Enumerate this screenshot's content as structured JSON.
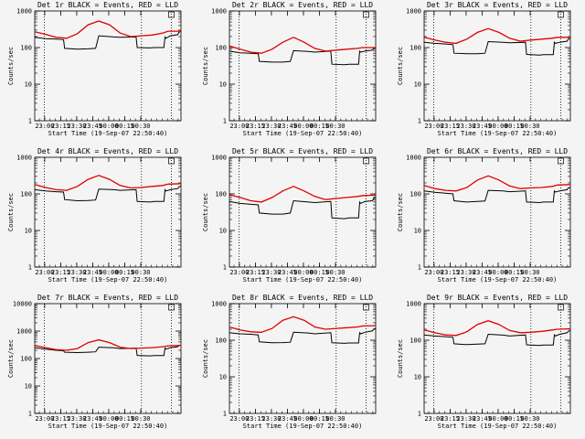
{
  "chart_data": [
    {
      "type": "line",
      "title": "Det 1r BLACK = Events, RED = LLD",
      "xlabel": "Start Time (19-Sep-07 22:50:40)",
      "ylabel": "Counts/sec",
      "ylim": [
        1,
        1000
      ],
      "yscale": "log",
      "x_tick_labels": [
        "23:00",
        "23:15",
        "23:30",
        "23:45",
        "00:00",
        "00:15",
        "00:30"
      ],
      "y_tick_labels": [
        "1",
        "10",
        "100",
        "1000"
      ],
      "series": [
        {
          "color": "#000000",
          "x": [
            0,
            10,
            20,
            27,
            28,
            40,
            50,
            57,
            60,
            74,
            80,
            95,
            96,
            108,
            112,
            121,
            122,
            123,
            127,
            134,
            135,
            137
          ],
          "y": [
            190,
            175,
            170,
            165,
            95,
            90,
            92,
            95,
            210,
            195,
            190,
            195,
            100,
            98,
            100,
            100,
            195,
            180,
            210,
            225,
            260,
            280
          ]
        },
        {
          "color": "#e00000",
          "x": [
            0,
            10,
            20,
            30,
            40,
            50,
            60,
            70,
            80,
            90,
            100,
            110,
            120,
            125,
            137
          ],
          "y": [
            270,
            230,
            190,
            180,
            240,
            420,
            530,
            420,
            250,
            200,
            210,
            220,
            250,
            280,
            280
          ]
        }
      ]
    },
    {
      "type": "line",
      "title": "Det 2r BLACK = Events, RED = LLD",
      "xlabel": "Start Time (19-Sep-07 22:50:40)",
      "ylabel": "Counts/sec",
      "ylim": [
        1,
        1000
      ],
      "yscale": "log",
      "x_tick_labels": [
        "23:00",
        "23:15",
        "23:30",
        "23:45",
        "00:00",
        "00:15",
        "00:30"
      ],
      "y_tick_labels": [
        "1",
        "10",
        "100",
        "1000"
      ],
      "series": [
        {
          "color": "#000000",
          "x": [
            0,
            10,
            20,
            27,
            28,
            40,
            50,
            57,
            60,
            74,
            80,
            95,
            96,
            108,
            112,
            121,
            122,
            123,
            127,
            134,
            135,
            137
          ],
          "y": [
            80,
            72,
            70,
            68,
            42,
            40,
            40,
            42,
            82,
            78,
            75,
            80,
            35,
            34,
            35,
            35,
            80,
            75,
            80,
            85,
            95,
            100
          ]
        },
        {
          "color": "#e00000",
          "x": [
            0,
            10,
            20,
            30,
            40,
            50,
            60,
            70,
            80,
            90,
            100,
            110,
            120,
            125,
            137
          ],
          "y": [
            110,
            90,
            75,
            70,
            90,
            140,
            190,
            140,
            95,
            80,
            85,
            90,
            95,
            100,
            100
          ]
        }
      ]
    },
    {
      "type": "line",
      "title": "Det 3r BLACK = Events, RED = LLD",
      "xlabel": "Start Time (19-Sep-07 22:50:40)",
      "ylabel": "Counts/sec",
      "ylim": [
        1,
        1000
      ],
      "yscale": "log",
      "x_tick_labels": [
        "23:00",
        "23:15",
        "23:30",
        "23:45",
        "00:00",
        "00:15",
        "00:30"
      ],
      "y_tick_labels": [
        "1",
        "10",
        "100",
        "1000"
      ],
      "series": [
        {
          "color": "#000000",
          "x": [
            0,
            10,
            20,
            27,
            28,
            40,
            50,
            57,
            60,
            74,
            80,
            95,
            96,
            108,
            112,
            121,
            122,
            123,
            127,
            134,
            135,
            137
          ],
          "y": [
            140,
            130,
            125,
            120,
            70,
            68,
            68,
            70,
            145,
            140,
            135,
            140,
            65,
            62,
            64,
            64,
            140,
            130,
            140,
            150,
            170,
            180
          ]
        },
        {
          "color": "#e00000",
          "x": [
            0,
            10,
            20,
            30,
            40,
            50,
            60,
            70,
            80,
            90,
            100,
            110,
            120,
            125,
            137
          ],
          "y": [
            190,
            160,
            140,
            130,
            170,
            260,
            330,
            260,
            180,
            150,
            160,
            170,
            180,
            190,
            190
          ]
        }
      ]
    },
    {
      "type": "line",
      "title": "Det 4r BLACK = Events, RED = LLD",
      "xlabel": "Start Time (19-Sep-07 22:50:40)",
      "ylabel": "Counts/sec",
      "ylim": [
        1,
        1000
      ],
      "yscale": "log",
      "x_tick_labels": [
        "23:00",
        "23:15",
        "23:30",
        "23:45",
        "00:00",
        "00:15",
        "00:30"
      ],
      "y_tick_labels": [
        "1",
        "10",
        "100",
        "1000"
      ],
      "series": [
        {
          "color": "#000000",
          "x": [
            0,
            10,
            20,
            27,
            28,
            40,
            50,
            57,
            60,
            74,
            80,
            95,
            96,
            108,
            112,
            121,
            122,
            123,
            127,
            134,
            135,
            137
          ],
          "y": [
            130,
            120,
            115,
            112,
            70,
            65,
            66,
            68,
            135,
            130,
            125,
            130,
            62,
            60,
            62,
            62,
            130,
            120,
            130,
            140,
            155,
            165
          ]
        },
        {
          "color": "#e00000",
          "x": [
            0,
            10,
            20,
            30,
            40,
            50,
            60,
            70,
            80,
            90,
            100,
            110,
            120,
            125,
            137
          ],
          "y": [
            180,
            150,
            130,
            125,
            160,
            250,
            320,
            250,
            170,
            145,
            150,
            160,
            170,
            185,
            190
          ]
        }
      ]
    },
    {
      "type": "line",
      "title": "Det 5r BLACK = Events, RED = LLD",
      "xlabel": "Start Time (19-Sep-07 22:50:40)",
      "ylabel": "Counts/sec",
      "ylim": [
        1,
        1000
      ],
      "yscale": "log",
      "x_tick_labels": [
        "23:00",
        "23:15",
        "23:30",
        "23:45",
        "00:00",
        "00:15",
        "00:30"
      ],
      "y_tick_labels": [
        "1",
        "10",
        "100",
        "1000"
      ],
      "series": [
        {
          "color": "#000000",
          "x": [
            0,
            10,
            20,
            27,
            28,
            40,
            50,
            57,
            60,
            74,
            80,
            95,
            96,
            108,
            112,
            121,
            122,
            123,
            127,
            134,
            135,
            137
          ],
          "y": [
            62,
            55,
            52,
            50,
            30,
            28,
            28,
            30,
            65,
            60,
            58,
            62,
            22,
            21,
            22,
            22,
            60,
            55,
            62,
            65,
            75,
            80
          ]
        },
        {
          "color": "#e00000",
          "x": [
            0,
            10,
            20,
            30,
            40,
            50,
            60,
            70,
            80,
            90,
            100,
            110,
            120,
            125,
            137
          ],
          "y": [
            95,
            80,
            65,
            60,
            80,
            120,
            160,
            120,
            85,
            70,
            75,
            80,
            85,
            90,
            92
          ]
        }
      ]
    },
    {
      "type": "line",
      "title": "Det 6r BLACK = Events, RED = LLD",
      "xlabel": "Start Time (19-Sep-07 22:50:40)",
      "ylabel": "Counts/sec",
      "ylim": [
        1,
        1000
      ],
      "yscale": "log",
      "x_tick_labels": [
        "23:00",
        "23:15",
        "23:30",
        "23:45",
        "00:00",
        "00:15",
        "00:30"
      ],
      "y_tick_labels": [
        "1",
        "10",
        "100",
        "1000"
      ],
      "series": [
        {
          "color": "#000000",
          "x": [
            0,
            10,
            20,
            27,
            28,
            40,
            50,
            57,
            60,
            74,
            80,
            95,
            96,
            108,
            112,
            121,
            122,
            123,
            127,
            134,
            135,
            137
          ],
          "y": [
            120,
            110,
            105,
            100,
            65,
            60,
            62,
            64,
            125,
            120,
            115,
            120,
            60,
            58,
            60,
            60,
            120,
            112,
            120,
            130,
            145,
            150
          ]
        },
        {
          "color": "#e00000",
          "x": [
            0,
            10,
            20,
            30,
            40,
            50,
            60,
            70,
            80,
            90,
            100,
            110,
            120,
            125,
            137
          ],
          "y": [
            170,
            140,
            125,
            120,
            150,
            240,
            310,
            240,
            165,
            140,
            145,
            150,
            160,
            175,
            180
          ]
        }
      ]
    },
    {
      "type": "line",
      "title": "Det 7r BLACK = Events, RED = LLD",
      "xlabel": "Start Time (19-Sep-07 22:50:40)",
      "ylabel": "Counts/sec",
      "ylim": [
        1,
        10000
      ],
      "yscale": "log",
      "x_tick_labels": [
        "23:00",
        "23:15",
        "23:30",
        "23:45",
        "00:00",
        "00:15",
        "00:30"
      ],
      "y_tick_labels": [
        "1",
        "10",
        "100",
        "1000",
        "10000"
      ],
      "series": [
        {
          "color": "#000000",
          "x": [
            0,
            10,
            20,
            27,
            28,
            40,
            50,
            57,
            60,
            74,
            80,
            95,
            96,
            108,
            112,
            121,
            122,
            123,
            127,
            134,
            135,
            137
          ],
          "y": [
            250,
            220,
            200,
            190,
            170,
            165,
            170,
            175,
            260,
            245,
            230,
            240,
            130,
            125,
            128,
            128,
            240,
            220,
            250,
            270,
            300,
            310
          ]
        },
        {
          "color": "#e00000",
          "x": [
            0,
            10,
            20,
            30,
            40,
            50,
            60,
            70,
            80,
            90,
            100,
            110,
            120,
            125,
            137
          ],
          "y": [
            300,
            250,
            210,
            200,
            230,
            380,
            480,
            380,
            260,
            230,
            240,
            250,
            270,
            290,
            300
          ]
        }
      ]
    },
    {
      "type": "line",
      "title": "Det 8r BLACK = Events, RED = LLD",
      "xlabel": "Start Time (19-Sep-07 22:50:40)",
      "ylabel": "Counts/sec",
      "ylim": [
        1,
        1000
      ],
      "yscale": "log",
      "x_tick_labels": [
        "23:00",
        "23:15",
        "23:30",
        "23:45",
        "00:00",
        "00:15",
        "00:30"
      ],
      "y_tick_labels": [
        "1",
        "10",
        "100",
        "1000"
      ],
      "series": [
        {
          "color": "#000000",
          "x": [
            0,
            10,
            20,
            27,
            28,
            40,
            50,
            57,
            60,
            74,
            80,
            95,
            96,
            108,
            112,
            121,
            122,
            123,
            127,
            134,
            135,
            137
          ],
          "y": [
            160,
            150,
            145,
            140,
            90,
            85,
            86,
            88,
            165,
            158,
            150,
            160,
            85,
            82,
            84,
            84,
            160,
            150,
            165,
            180,
            200,
            210
          ]
        },
        {
          "color": "#e00000",
          "x": [
            0,
            10,
            20,
            30,
            40,
            50,
            60,
            70,
            80,
            90,
            100,
            110,
            120,
            125,
            137
          ],
          "y": [
            230,
            190,
            170,
            165,
            210,
            350,
            440,
            350,
            230,
            200,
            210,
            220,
            230,
            245,
            250
          ]
        }
      ]
    },
    {
      "type": "line",
      "title": "Det 9r BLACK = Events, RED = LLD",
      "xlabel": "Start Time (19-Sep-07 22:50:40)",
      "ylabel": "Counts/sec",
      "ylim": [
        1,
        1000
      ],
      "yscale": "log",
      "x_tick_labels": [
        "23:00",
        "23:15",
        "23:30",
        "23:45",
        "00:00",
        "00:15",
        "00:30"
      ],
      "y_tick_labels": [
        "1",
        "10",
        "100",
        "1000"
      ],
      "series": [
        {
          "color": "#000000",
          "x": [
            0,
            10,
            20,
            27,
            28,
            40,
            50,
            57,
            60,
            74,
            80,
            95,
            96,
            108,
            112,
            121,
            122,
            123,
            127,
            134,
            135,
            137
          ],
          "y": [
            140,
            130,
            125,
            120,
            80,
            76,
            78,
            80,
            145,
            138,
            130,
            140,
            75,
            72,
            74,
            74,
            140,
            130,
            145,
            160,
            175,
            185
          ]
        },
        {
          "color": "#e00000",
          "x": [
            0,
            10,
            20,
            30,
            40,
            50,
            60,
            70,
            80,
            90,
            100,
            110,
            120,
            125,
            137
          ],
          "y": [
            190,
            160,
            140,
            135,
            170,
            270,
            340,
            270,
            185,
            160,
            165,
            175,
            190,
            200,
            205
          ]
        }
      ]
    }
  ]
}
